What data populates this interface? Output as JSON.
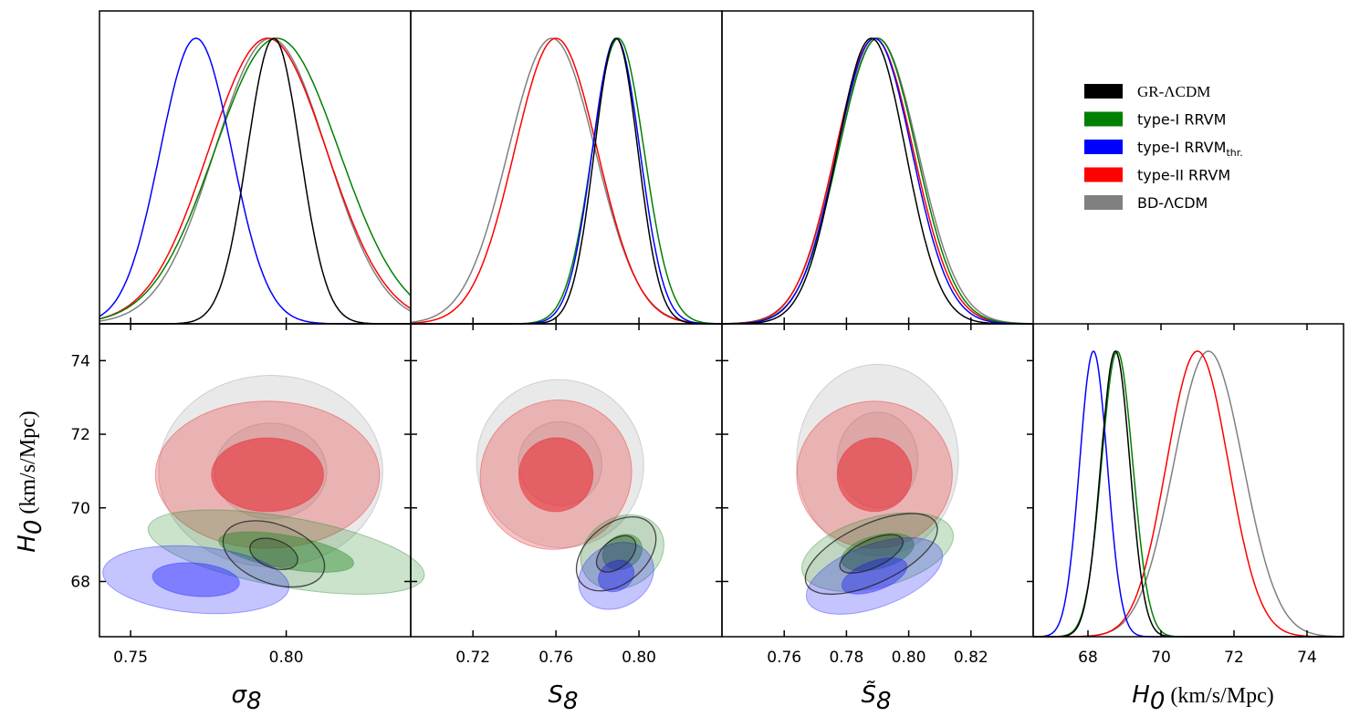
{
  "chart_data": {
    "type": "corner-plot",
    "legend": [
      {
        "label": "GR-ΛCDM",
        "color": "#000000"
      },
      {
        "label": "type-I RRVM",
        "color": "#008000"
      },
      {
        "label": "type-I RRVM",
        "sub": "thr.",
        "color": "#0000ff"
      },
      {
        "label": "type-II RRVM",
        "color": "#ff0000"
      },
      {
        "label": "BD-ΛCDM",
        "color": "#808080"
      }
    ],
    "parameters": [
      {
        "key": "sigma8",
        "label": "σ",
        "sub": "8",
        "range": [
          0.74,
          0.84
        ],
        "ticks": [
          0.75,
          0.8
        ],
        "tick_labels": [
          "0.75",
          "0.80"
        ]
      },
      {
        "key": "S8",
        "label": "S",
        "sub": "8",
        "range": [
          0.69,
          0.84
        ],
        "ticks": [
          0.72,
          0.76,
          0.8
        ],
        "tick_labels": [
          "0.72",
          "0.76",
          "0.80"
        ]
      },
      {
        "key": "S8tilde",
        "label": "S̃",
        "sub": "8",
        "range": [
          0.74,
          0.84
        ],
        "ticks": [
          0.76,
          0.78,
          0.8,
          0.82
        ],
        "tick_labels": [
          "0.76",
          "0.78",
          "0.80",
          "0.82"
        ]
      },
      {
        "key": "H0",
        "label": "H",
        "sub": "0",
        "units": "(km/s/Mpc)",
        "range": [
          66.5,
          75.0
        ],
        "ticks": [
          68,
          70,
          72,
          74
        ],
        "tick_labels": [
          "68",
          "70",
          "72",
          "74"
        ]
      }
    ],
    "ylabel": {
      "label": "H",
      "sub": "0",
      "units": "(km/s/Mpc)"
    },
    "y_ticks": [
      68,
      70,
      72,
      74
    ],
    "y_tick_labels": [
      "68",
      "70",
      "72",
      "74"
    ],
    "y_range": [
      66.5,
      75.0
    ],
    "marginals": {
      "sigma8": [
        {
          "model": "GR-ΛCDM",
          "mean": 0.796,
          "sd": 0.0085
        },
        {
          "model": "type-I RRVM",
          "mean": 0.797,
          "sd": 0.02
        },
        {
          "model": "type-I RRVM thr.",
          "mean": 0.771,
          "sd": 0.0115
        },
        {
          "model": "type-II RRVM",
          "mean": 0.794,
          "sd": 0.019
        },
        {
          "model": "BD-ΛCDM",
          "mean": 0.795,
          "sd": 0.018
        }
      ],
      "S8": [
        {
          "model": "GR-ΛCDM",
          "mean": 0.789,
          "sd": 0.0105
        },
        {
          "model": "type-I RRVM",
          "mean": 0.79,
          "sd": 0.0125
        },
        {
          "model": "type-I RRVM thr.",
          "mean": 0.789,
          "sd": 0.0115
        },
        {
          "model": "type-II RRVM",
          "mean": 0.76,
          "sd": 0.02
        },
        {
          "model": "BD-ΛCDM",
          "mean": 0.758,
          "sd": 0.021
        }
      ],
      "S8tilde": [
        {
          "model": "GR-ΛCDM",
          "mean": 0.788,
          "sd": 0.011
        },
        {
          "model": "type-I RRVM",
          "mean": 0.79,
          "sd": 0.0125
        },
        {
          "model": "type-I RRVM thr.",
          "mean": 0.789,
          "sd": 0.012
        },
        {
          "model": "type-II RRVM",
          "mean": 0.789,
          "sd": 0.0125
        },
        {
          "model": "BD-ΛCDM",
          "mean": 0.79,
          "sd": 0.013
        }
      ],
      "H0": [
        {
          "model": "GR-ΛCDM",
          "mean": 68.75,
          "sd": 0.4
        },
        {
          "model": "type-I RRVM",
          "mean": 68.8,
          "sd": 0.43
        },
        {
          "model": "type-I RRVM thr.",
          "mean": 68.15,
          "sd": 0.38
        },
        {
          "model": "type-II RRVM",
          "mean": 71.0,
          "sd": 0.85
        },
        {
          "model": "BD-ΛCDM",
          "mean": 71.3,
          "sd": 0.95
        }
      ]
    },
    "contours": {
      "sigma8": [
        {
          "model": "BD-ΛCDM",
          "cx": 0.795,
          "cy": 71.0,
          "rx": [
            0.018,
            0.036
          ],
          "ry": [
            1.3,
            2.6
          ],
          "rot": 0
        },
        {
          "model": "type-II RRVM",
          "cx": 0.794,
          "cy": 70.9,
          "rx": [
            0.018,
            0.036
          ],
          "ry": [
            1.0,
            2.0
          ],
          "rot": 0
        },
        {
          "model": "type-I RRVM",
          "cx": 0.8,
          "cy": 68.8,
          "rx": [
            0.022,
            0.045
          ],
          "ry": [
            0.45,
            0.95
          ],
          "rot": 10
        },
        {
          "model": "type-I RRVM thr.",
          "cx": 0.771,
          "cy": 68.05,
          "rx": [
            0.014,
            0.03
          ],
          "ry": [
            0.45,
            0.9
          ],
          "rot": 5
        },
        {
          "model": "GR-ΛCDM",
          "cx": 0.796,
          "cy": 68.75,
          "rx": [
            0.008,
            0.017
          ],
          "ry": [
            0.38,
            0.8
          ],
          "rot": 20
        }
      ],
      "S8": [
        {
          "model": "BD-ΛCDM",
          "cx": 0.762,
          "cy": 71.2,
          "rx": [
            0.02,
            0.04
          ],
          "ry": [
            1.15,
            2.3
          ],
          "rot": -35
        },
        {
          "model": "type-II RRVM",
          "cx": 0.76,
          "cy": 70.9,
          "rx": [
            0.018,
            0.037
          ],
          "ry": [
            1.0,
            2.0
          ],
          "rot": -35
        },
        {
          "model": "type-I RRVM",
          "cx": 0.792,
          "cy": 68.8,
          "rx": [
            0.01,
            0.021
          ],
          "ry": [
            0.45,
            0.95
          ],
          "rot": -30
        },
        {
          "model": "type-I RRVM thr.",
          "cx": 0.789,
          "cy": 68.15,
          "rx": [
            0.009,
            0.019
          ],
          "ry": [
            0.4,
            0.85
          ],
          "rot": -30
        },
        {
          "model": "GR-ΛCDM",
          "cx": 0.789,
          "cy": 68.75,
          "rx": [
            0.011,
            0.022
          ],
          "ry": [
            0.38,
            0.8
          ],
          "rot": -40
        }
      ],
      "S8tilde": [
        {
          "model": "BD-ΛCDM",
          "cx": 0.79,
          "cy": 71.3,
          "rx": [
            0.013,
            0.026
          ],
          "ry": [
            1.3,
            2.6
          ],
          "rot": 0
        },
        {
          "model": "type-II RRVM",
          "cx": 0.789,
          "cy": 70.9,
          "rx": [
            0.012,
            0.025
          ],
          "ry": [
            1.0,
            2.0
          ],
          "rot": 0
        },
        {
          "model": "type-I RRVM",
          "cx": 0.79,
          "cy": 68.8,
          "rx": [
            0.012,
            0.025
          ],
          "ry": [
            0.45,
            0.95
          ],
          "rot": -15
        },
        {
          "model": "type-I RRVM thr.",
          "cx": 0.789,
          "cy": 68.15,
          "rx": [
            0.011,
            0.023
          ],
          "ry": [
            0.4,
            0.85
          ],
          "rot": -20
        },
        {
          "model": "GR-ΛCDM",
          "cx": 0.788,
          "cy": 68.75,
          "rx": [
            0.011,
            0.023
          ],
          "ry": [
            0.38,
            0.8
          ],
          "rot": -25
        }
      ]
    }
  }
}
